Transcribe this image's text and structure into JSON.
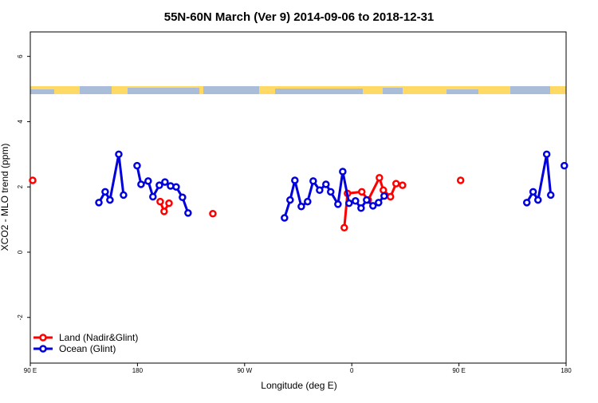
{
  "chart_data": {
    "type": "line",
    "title": "55N-60N March (Ver 9)   2014-09-06 to 2018-12-31",
    "x_label": "Longitude (deg E)",
    "y_label": "XCO2 - MLO trend (ppm)",
    "xlim": [
      90,
      540
    ],
    "ylim": [
      -3.4,
      6.75
    ],
    "xticks": [
      {
        "value": 90,
        "label": "90 E"
      },
      180,
      {
        "value": 270,
        "label": "90 W"
      },
      {
        "value": 360,
        "label": "0"
      },
      {
        "value": 450,
        "label": "90 E"
      },
      180
    ],
    "yticks": [
      -2,
      0,
      2,
      4,
      6
    ],
    "legend": "bottom-left",
    "series": [
      {
        "name": "Land (Nadir&Glint)",
        "color": "#ff0000",
        "x": [
          92,
          145,
          199.1,
          202.4,
          206.5,
          240,
          243.3,
          300,
          353.7,
          356.4,
          368.4,
          373.8,
          383.2,
          386.5,
          392.5,
          397.2,
          402.6,
          440,
          451.4
        ],
        "values": [
          2.2,
          null,
          1.55,
          1.25,
          1.5,
          null,
          1.18,
          null,
          0.75,
          1.8,
          1.85,
          1.6,
          2.28,
          1.9,
          1.7,
          2.1,
          2.05,
          null,
          2.2
        ]
      },
      {
        "name": "Ocean (Glint)",
        "color": "#0000dd",
        "x": [
          147.6,
          152.9,
          156.9,
          164.3,
          168.3,
          174,
          179.7,
          183,
          189,
          193,
          198.4,
          203.1,
          207.8,
          212.5,
          217.8,
          222.5,
          260,
          303.5,
          308.2,
          312.2,
          317.6,
          322.9,
          327.6,
          333,
          338.3,
          342.3,
          348.4,
          352.4,
          357.7,
          363.1,
          367.8,
          372.5,
          377.8,
          382.5,
          387.2,
          450,
          507,
          512.3,
          516.4,
          523.7,
          527.1,
          532,
          538.5
        ],
        "values": [
          1.52,
          1.85,
          1.6,
          3.0,
          1.75,
          null,
          2.65,
          2.08,
          2.18,
          1.7,
          2.05,
          2.15,
          2.03,
          2.0,
          1.68,
          1.2,
          null,
          1.05,
          1.6,
          2.2,
          1.4,
          1.55,
          2.18,
          1.9,
          2.08,
          1.85,
          1.47,
          2.47,
          1.5,
          1.57,
          1.35,
          1.6,
          1.42,
          1.52,
          1.72,
          null,
          1.52,
          1.85,
          1.6,
          3.0,
          1.75,
          null,
          2.65
        ]
      }
    ]
  }
}
